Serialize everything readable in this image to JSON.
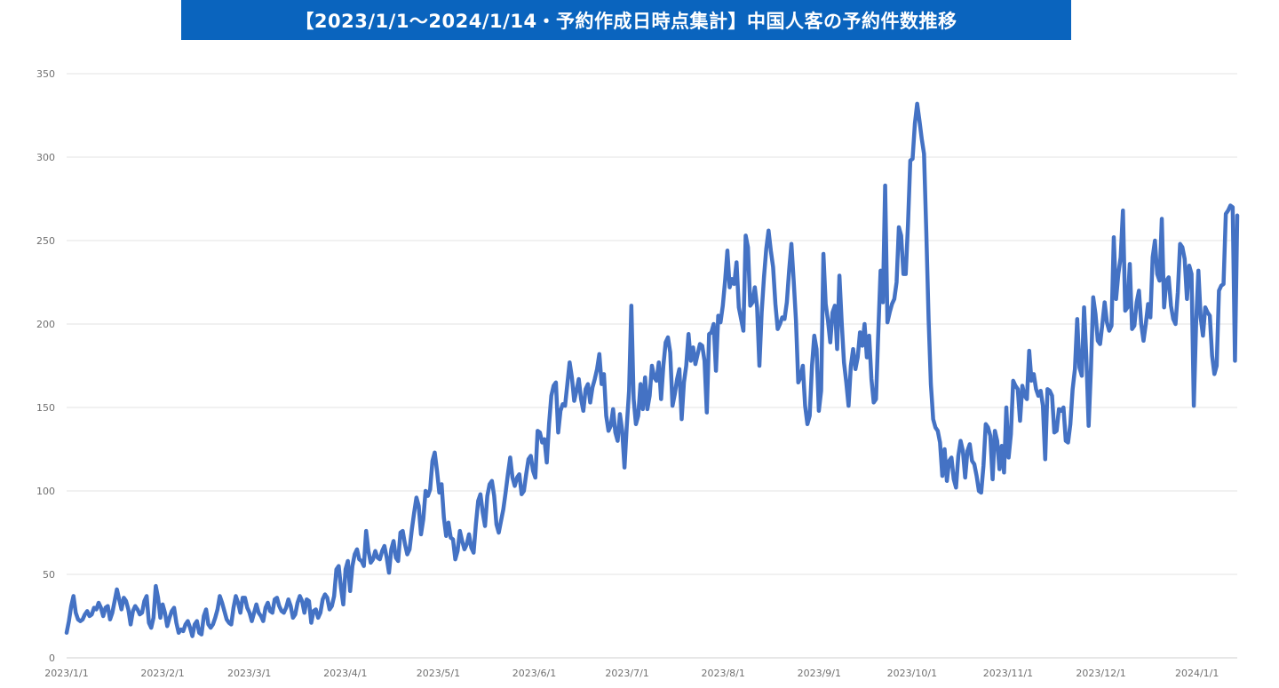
{
  "chart_data": {
    "type": "line",
    "title": "【2023/1/1～2024/1/14・予約作成日時点集計】中国人客の予約件数推移",
    "xlabel": "",
    "ylabel": "",
    "ylim": [
      0,
      350
    ],
    "yticks": [
      0,
      50,
      100,
      150,
      200,
      250,
      300,
      350
    ],
    "grid": true,
    "legend": "none",
    "x_tick_labels": [
      "2023/1/1",
      "2023/2/1",
      "2023/3/1",
      "2023/4/1",
      "2023/5/1",
      "2023/6/1",
      "2023/7/1",
      "2023/8/1",
      "2023/9/1",
      "2023/10/1",
      "2023/11/1",
      "2023/12/1",
      "2024/1/1"
    ],
    "x_tick_days": [
      0,
      31,
      59,
      90,
      120,
      151,
      181,
      212,
      243,
      273,
      304,
      334,
      365
    ],
    "x_range_days": [
      0,
      378
    ],
    "color": "#4472c4",
    "series": [
      {
        "x_start": "2023/1/1",
        "x_end": "2024/1/14",
        "values": [
          15,
          22,
          31,
          37,
          27,
          23,
          22,
          23,
          26,
          28,
          25,
          26,
          30,
          29,
          33,
          30,
          25,
          30,
          31,
          23,
          27,
          34,
          41,
          35,
          29,
          36,
          34,
          29,
          20,
          28,
          31,
          29,
          26,
          27,
          34,
          37,
          21,
          18,
          24,
          43,
          36,
          24,
          32,
          27,
          19,
          24,
          28,
          30,
          21,
          15,
          17,
          16,
          20,
          22,
          18,
          13,
          20,
          22,
          15,
          14,
          25,
          29,
          20,
          18,
          20,
          24,
          29,
          37,
          33,
          28,
          23,
          21,
          20,
          30,
          37,
          33,
          27,
          36,
          36,
          30,
          27,
          22,
          27,
          32,
          27,
          25,
          22,
          30,
          33,
          28,
          27,
          35,
          36,
          31,
          28,
          27,
          30,
          35,
          31,
          24,
          26,
          33,
          37,
          34,
          27,
          35,
          34,
          21,
          28,
          29,
          24,
          27,
          35,
          38,
          36,
          29,
          31,
          37,
          53,
          55,
          42,
          32,
          53,
          58,
          40,
          55,
          62,
          65,
          59,
          58,
          55,
          76,
          64,
          57,
          59,
          64,
          60,
          59,
          64,
          67,
          60,
          51,
          65,
          70,
          60,
          58,
          75,
          76,
          68,
          62,
          65,
          77,
          87,
          96,
          91,
          74,
          83,
          100,
          97,
          101,
          118,
          123,
          112,
          99,
          104,
          84,
          73,
          81,
          72,
          71,
          59,
          64,
          76,
          70,
          65,
          68,
          74,
          66,
          63,
          80,
          94,
          98,
          87,
          79,
          97,
          104,
          106,
          97,
          80,
          75,
          82,
          89,
          99,
          110,
          120,
          108,
          103,
          108,
          110,
          98,
          100,
          110,
          119,
          121,
          112,
          108,
          136,
          135,
          129,
          131,
          117,
          140,
          157,
          163,
          165,
          135,
          148,
          152,
          151,
          164,
          177,
          168,
          154,
          160,
          167,
          155,
          148,
          161,
          164,
          153,
          162,
          167,
          173,
          182,
          164,
          170,
          145,
          136,
          139,
          149,
          135,
          130,
          146,
          136,
          114,
          139,
          160,
          211,
          155,
          140,
          145,
          164,
          149,
          168,
          149,
          157,
          175,
          168,
          166,
          177,
          155,
          175,
          189,
          192,
          183,
          151,
          158,
          167,
          173,
          143,
          165,
          175,
          194,
          178,
          186,
          176,
          182,
          188,
          187,
          178,
          147,
          194,
          195,
          200,
          172,
          205,
          201,
          211,
          226,
          244,
          222,
          227,
          224,
          237,
          210,
          203,
          196,
          253,
          246,
          211,
          213,
          222,
          210,
          175,
          207,
          228,
          245,
          256,
          244,
          234,
          212,
          197,
          200,
          204,
          203,
          213,
          232,
          248,
          226,
          202,
          165,
          168,
          175,
          151,
          140,
          145,
          175,
          193,
          185,
          148,
          160,
          242,
          212,
          202,
          189,
          207,
          211,
          185,
          229,
          201,
          177,
          165,
          151,
          175,
          185,
          173,
          180,
          195,
          187,
          200,
          180,
          193,
          167,
          153,
          155,
          195,
          232,
          213,
          283,
          201,
          207,
          212,
          215,
          225,
          258,
          253,
          230,
          230,
          260,
          298,
          299,
          320,
          332,
          322,
          311,
          302,
          255,
          203,
          164,
          143,
          138,
          136,
          129,
          109,
          125,
          106,
          118,
          120,
          107,
          102,
          121,
          130,
          124,
          108,
          124,
          128,
          118,
          116,
          109,
          100,
          99,
          115,
          140,
          138,
          133,
          107,
          136,
          130,
          113,
          127,
          111,
          150,
          120,
          134,
          166,
          163,
          161,
          142,
          163,
          157,
          155,
          184,
          166,
          170,
          161,
          157,
          160,
          151,
          119,
          161,
          160,
          157,
          135,
          136,
          149,
          148,
          150,
          130,
          129,
          140,
          161,
          173,
          203,
          174,
          169,
          210,
          180,
          139,
          173,
          216,
          206,
          190,
          188,
          200,
          213,
          201,
          196,
          199,
          252,
          215,
          230,
          240,
          268,
          208,
          210,
          236,
          197,
          199,
          213,
          220,
          200,
          190,
          200,
          212,
          204,
          240,
          250,
          230,
          226,
          263,
          210,
          226,
          228,
          211,
          203,
          200,
          219,
          248,
          246,
          239,
          215,
          235,
          230,
          151,
          200,
          232,
          204,
          193,
          210,
          207,
          205,
          181,
          170,
          175,
          220,
          223,
          224,
          266,
          268,
          271,
          270,
          178,
          265
        ]
      }
    ]
  }
}
